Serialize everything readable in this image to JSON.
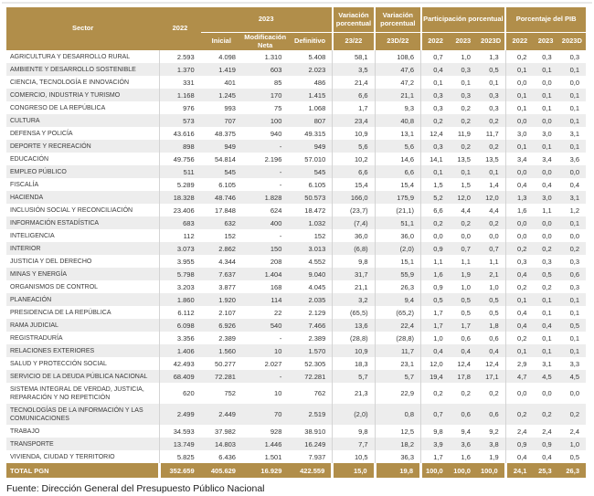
{
  "colors": {
    "gold": "#B18E4A",
    "stripe": "#EDEDED"
  },
  "header": {
    "col_sector": "Sector",
    "col_2022": "2022",
    "group_2023": "2023",
    "sub_inicial": "Inicial",
    "sub_modificacion": "Modificación Neta",
    "sub_definitivo": "Definitivo",
    "group_var1": "Variación porcentual",
    "sub_var1": "23/22",
    "group_var2": "Variación porcentual",
    "sub_var2": "23D/22",
    "group_participacion": "Participación porcentual",
    "part_cols": [
      "2022",
      "2023",
      "2023D"
    ],
    "group_pib": "Porcentaje del PIB",
    "pib_cols": [
      "2022",
      "2023",
      "2023D"
    ]
  },
  "table": {
    "rows": [
      {
        "sector": "AGRICULTURA Y DESARROLLO RURAL",
        "values": [
          "2.593",
          "4.098",
          "1.310",
          "5.408",
          "58,1",
          "108,6",
          "0,7",
          "1,0",
          "1,3",
          "0,2",
          "0,3",
          "0,3"
        ]
      },
      {
        "sector": "AMBIENTE Y DESARROLLO SOSTENIBLE",
        "values": [
          "1.370",
          "1.419",
          "603",
          "2.023",
          "3,5",
          "47,6",
          "0,4",
          "0,3",
          "0,5",
          "0,1",
          "0,1",
          "0,1"
        ]
      },
      {
        "sector": "CIENCIA, TECNOLOGÍA E INNOVACIÓN",
        "values": [
          "331",
          "401",
          "85",
          "486",
          "21,4",
          "47,2",
          "0,1",
          "0,1",
          "0,1",
          "0,0",
          "0,0",
          "0,0"
        ]
      },
      {
        "sector": "COMERCIO, INDUSTRIA Y TURISMO",
        "values": [
          "1.168",
          "1.245",
          "170",
          "1.415",
          "6,6",
          "21,1",
          "0,3",
          "0,3",
          "0,3",
          "0,1",
          "0,1",
          "0,1"
        ]
      },
      {
        "sector": "CONGRESO DE LA REPÚBLICA",
        "values": [
          "976",
          "993",
          "75",
          "1.068",
          "1,7",
          "9,3",
          "0,3",
          "0,2",
          "0,3",
          "0,1",
          "0,1",
          "0,1"
        ]
      },
      {
        "sector": "CULTURA",
        "values": [
          "573",
          "707",
          "100",
          "807",
          "23,4",
          "40,8",
          "0,2",
          "0,2",
          "0,2",
          "0,0",
          "0,0",
          "0,1"
        ]
      },
      {
        "sector": "DEFENSA Y POLICÍA",
        "values": [
          "43.616",
          "48.375",
          "940",
          "49.315",
          "10,9",
          "13,1",
          "12,4",
          "11,9",
          "11,7",
          "3,0",
          "3,0",
          "3,1"
        ]
      },
      {
        "sector": "DEPORTE Y RECREACIÓN",
        "values": [
          "898",
          "949",
          "-",
          "949",
          "5,6",
          "5,6",
          "0,3",
          "0,2",
          "0,2",
          "0,1",
          "0,1",
          "0,1"
        ]
      },
      {
        "sector": "EDUCACIÓN",
        "values": [
          "49.756",
          "54.814",
          "2.196",
          "57.010",
          "10,2",
          "14,6",
          "14,1",
          "13,5",
          "13,5",
          "3,4",
          "3,4",
          "3,6"
        ]
      },
      {
        "sector": "EMPLEO PÚBLICO",
        "values": [
          "511",
          "545",
          "-",
          "545",
          "6,6",
          "6,6",
          "0,1",
          "0,1",
          "0,1",
          "0,0",
          "0,0",
          "0,0"
        ]
      },
      {
        "sector": "FISCALÍA",
        "values": [
          "5.289",
          "6.105",
          "-",
          "6.105",
          "15,4",
          "15,4",
          "1,5",
          "1,5",
          "1,4",
          "0,4",
          "0,4",
          "0,4"
        ]
      },
      {
        "sector": "HACIENDA",
        "values": [
          "18.328",
          "48.746",
          "1.828",
          "50.573",
          "166,0",
          "175,9",
          "5,2",
          "12,0",
          "12,0",
          "1,3",
          "3,0",
          "3,1"
        ]
      },
      {
        "sector": "INCLUSIÓN SOCIAL Y RECONCILIACIÓN",
        "values": [
          "23.406",
          "17.848",
          "624",
          "18.472",
          "(23,7)",
          "(21,1)",
          "6,6",
          "4,4",
          "4,4",
          "1,6",
          "1,1",
          "1,2"
        ]
      },
      {
        "sector": "INFORMACIÓN ESTADÍSTICA",
        "values": [
          "683",
          "632",
          "400",
          "1.032",
          "(7,4)",
          "51,1",
          "0,2",
          "0,2",
          "0,2",
          "0,0",
          "0,0",
          "0,1"
        ]
      },
      {
        "sector": "INTELIGENCIA",
        "values": [
          "112",
          "152",
          "-",
          "152",
          "36,0",
          "36,0",
          "0,0",
          "0,0",
          "0,0",
          "0,0",
          "0,0",
          "0,0"
        ]
      },
      {
        "sector": "INTERIOR",
        "values": [
          "3.073",
          "2.862",
          "150",
          "3.013",
          "(6,8)",
          "(2,0)",
          "0,9",
          "0,7",
          "0,7",
          "0,2",
          "0,2",
          "0,2"
        ]
      },
      {
        "sector": "JUSTICIA Y DEL DERECHO",
        "values": [
          "3.955",
          "4.344",
          "208",
          "4.552",
          "9,8",
          "15,1",
          "1,1",
          "1,1",
          "1,1",
          "0,3",
          "0,3",
          "0,3"
        ]
      },
      {
        "sector": "MINAS Y ENERGÍA",
        "values": [
          "5.798",
          "7.637",
          "1.404",
          "9.040",
          "31,7",
          "55,9",
          "1,6",
          "1,9",
          "2,1",
          "0,4",
          "0,5",
          "0,6"
        ]
      },
      {
        "sector": "ORGANISMOS DE CONTROL",
        "values": [
          "3.203",
          "3.877",
          "168",
          "4.045",
          "21,1",
          "26,3",
          "0,9",
          "1,0",
          "1,0",
          "0,2",
          "0,2",
          "0,3"
        ]
      },
      {
        "sector": "PLANEACIÓN",
        "values": [
          "1.860",
          "1.920",
          "114",
          "2.035",
          "3,2",
          "9,4",
          "0,5",
          "0,5",
          "0,5",
          "0,1",
          "0,1",
          "0,1"
        ]
      },
      {
        "sector": "PRESIDENCIA DE LA REPÚBLICA",
        "values": [
          "6.112",
          "2.107",
          "22",
          "2.129",
          "(65,5)",
          "(65,2)",
          "1,7",
          "0,5",
          "0,5",
          "0,4",
          "0,1",
          "0,1"
        ]
      },
      {
        "sector": "RAMA JUDICIAL",
        "values": [
          "6.098",
          "6.926",
          "540",
          "7.466",
          "13,6",
          "22,4",
          "1,7",
          "1,7",
          "1,8",
          "0,4",
          "0,4",
          "0,5"
        ]
      },
      {
        "sector": "REGISTRADURÍA",
        "values": [
          "3.356",
          "2.389",
          "-",
          "2.389",
          "(28,8)",
          "(28,8)",
          "1,0",
          "0,6",
          "0,6",
          "0,2",
          "0,1",
          "0,1"
        ]
      },
      {
        "sector": "RELACIONES EXTERIORES",
        "values": [
          "1.406",
          "1.560",
          "10",
          "1.570",
          "10,9",
          "11,7",
          "0,4",
          "0,4",
          "0,4",
          "0,1",
          "0,1",
          "0,1"
        ]
      },
      {
        "sector": "SALUD Y PROTECCIÓN SOCIAL",
        "values": [
          "42.493",
          "50.277",
          "2.027",
          "52.305",
          "18,3",
          "23,1",
          "12,0",
          "12,4",
          "12,4",
          "2,9",
          "3,1",
          "3,3"
        ]
      },
      {
        "sector": "SERVICIO DE LA DEUDA PÚBLICA NACIONAL",
        "values": [
          "68.409",
          "72.281",
          "-",
          "72.281",
          "5,7",
          "5,7",
          "19,4",
          "17,8",
          "17,1",
          "4,7",
          "4,5",
          "4,5"
        ]
      },
      {
        "sector": "SISTEMA INTEGRAL DE VERDAD, JUSTICIA, REPARACIÓN Y NO REPETICIÓN",
        "values": [
          "620",
          "752",
          "10",
          "762",
          "21,3",
          "22,9",
          "0,2",
          "0,2",
          "0,2",
          "0,0",
          "0,0",
          "0,0"
        ]
      },
      {
        "sector": "TECNOLOGÍAS DE LA INFORMACIÓN Y LAS COMUNICACIONES",
        "values": [
          "2.499",
          "2.449",
          "70",
          "2.519",
          "(2,0)",
          "0,8",
          "0,7",
          "0,6",
          "0,6",
          "0,2",
          "0,2",
          "0,2"
        ]
      },
      {
        "sector": "TRABAJO",
        "values": [
          "34.593",
          "37.982",
          "928",
          "38.910",
          "9,8",
          "12,5",
          "9,8",
          "9,4",
          "9,2",
          "2,4",
          "2,4",
          "2,4"
        ]
      },
      {
        "sector": "TRANSPORTE",
        "values": [
          "13.749",
          "14.803",
          "1.446",
          "16.249",
          "7,7",
          "18,2",
          "3,9",
          "3,6",
          "3,8",
          "0,9",
          "0,9",
          "1,0"
        ]
      },
      {
        "sector": "VIVIENDA, CIUDAD Y TERRITORIO",
        "values": [
          "5.825",
          "6.436",
          "1.501",
          "7.937",
          "10,5",
          "36,3",
          "1,7",
          "1,6",
          "1,9",
          "0,4",
          "0,4",
          "0,5"
        ]
      }
    ],
    "total": {
      "sector": "TOTAL PGN",
      "values": [
        "352.659",
        "405.629",
        "16.929",
        "422.559",
        "15,0",
        "19,8",
        "100,0",
        "100,0",
        "100,0",
        "24,1",
        "25,3",
        "26,3"
      ]
    }
  },
  "footer": {
    "source": "Fuente: Dirección General del Presupuesto Público Nacional"
  }
}
